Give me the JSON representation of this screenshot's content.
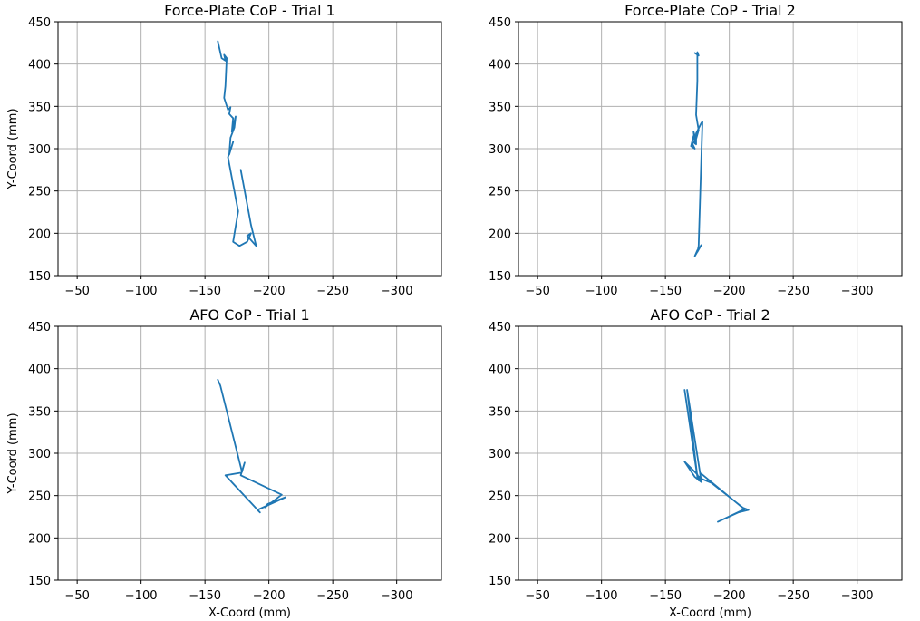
{
  "figure": {
    "line_color": "#1f77b4",
    "grid_color": "#b0b0b0"
  },
  "chart_data": [
    {
      "type": "line",
      "title": "Force-Plate CoP - Trial 1",
      "xlabel": "",
      "ylabel": "Y-Coord (mm)",
      "xlim": [
        -35,
        -335
      ],
      "ylim": [
        150,
        450
      ],
      "xticks": [
        -50,
        -100,
        -150,
        -200,
        -250,
        -300
      ],
      "yticks": [
        150,
        200,
        250,
        300,
        350,
        400,
        450
      ],
      "xtick_labels": [
        "−50",
        "−100",
        "−150",
        "−200",
        "−250",
        "−300"
      ],
      "ytick_labels": [
        "150",
        "200",
        "250",
        "300",
        "350",
        "400",
        "450"
      ],
      "grid": true,
      "series": [
        {
          "x": [
            -160,
            -163,
            -166,
            -165,
            -167,
            -166,
            -165,
            -168,
            -170,
            -169,
            -172,
            -171,
            -174,
            -173,
            -170,
            -169,
            -172,
            -170,
            -168,
            -176,
            -172,
            -177,
            -183,
            -186,
            -183,
            -190,
            -186,
            -178
          ],
          "y": [
            427,
            407,
            404,
            411,
            407,
            374,
            360,
            346,
            349,
            341,
            336,
            320,
            338,
            325,
            313,
            293,
            308,
            298,
            290,
            226,
            190,
            185,
            190,
            200,
            197,
            185,
            210,
            275
          ]
        }
      ]
    },
    {
      "type": "line",
      "title": "Force-Plate CoP - Trial 2",
      "xlabel": "",
      "ylabel": "",
      "xlim": [
        -35,
        -335
      ],
      "ylim": [
        150,
        450
      ],
      "xticks": [
        -50,
        -100,
        -150,
        -200,
        -250,
        -300
      ],
      "yticks": [
        150,
        200,
        250,
        300,
        350,
        400,
        450
      ],
      "xtick_labels": [
        "−50",
        "−100",
        "−150",
        "−200",
        "−250",
        "−300"
      ],
      "ytick_labels": [
        "150",
        "200",
        "250",
        "300",
        "350",
        "400",
        "450"
      ],
      "grid": true,
      "series": [
        {
          "x": [
            -173,
            -176,
            -175,
            -175,
            -174,
            -176,
            -173,
            -172,
            -174,
            -171,
            -173,
            -170,
            -172,
            -174,
            -174,
            -178,
            -179,
            -176,
            -175,
            -178,
            -173,
            -175
          ],
          "y": [
            413,
            410,
            414,
            380,
            340,
            322,
            306,
            320,
            310,
            306,
            300,
            303,
            315,
            305,
            318,
            330,
            332,
            185,
            178,
            186,
            173,
            180
          ]
        }
      ]
    },
    {
      "type": "line",
      "title": "AFO CoP - Trial 1",
      "xlabel": "X-Coord (mm)",
      "ylabel": "Y-Coord (mm)",
      "xlim": [
        -35,
        -335
      ],
      "ylim": [
        150,
        450
      ],
      "xticks": [
        -50,
        -100,
        -150,
        -200,
        -250,
        -300
      ],
      "yticks": [
        150,
        200,
        250,
        300,
        350,
        400,
        450
      ],
      "xtick_labels": [
        "−50",
        "−100",
        "−150",
        "−200",
        "−250",
        "−300"
      ],
      "ytick_labels": [
        "150",
        "200",
        "250",
        "300",
        "350",
        "400",
        "450"
      ],
      "grid": true,
      "series": [
        {
          "x": [
            -160,
            -162,
            -179,
            -181,
            -178,
            -210,
            -197,
            -199,
            -213,
            -191,
            -193,
            -166,
            -178
          ],
          "y": [
            387,
            380,
            278,
            289,
            274,
            251,
            236,
            240,
            248,
            233,
            230,
            274,
            277
          ]
        }
      ]
    },
    {
      "type": "line",
      "title": "AFO CoP - Trial 2",
      "xlabel": "X-Coord (mm)",
      "ylabel": "",
      "xlim": [
        -35,
        -335
      ],
      "ylim": [
        150,
        450
      ],
      "xticks": [
        -50,
        -100,
        -150,
        -200,
        -250,
        -300
      ],
      "yticks": [
        150,
        200,
        250,
        300,
        350,
        400,
        450
      ],
      "xtick_labels": [
        "−50",
        "−100",
        "−150",
        "−200",
        "−250",
        "−300"
      ],
      "ytick_labels": [
        "150",
        "200",
        "250",
        "300",
        "350",
        "400",
        "450"
      ],
      "grid": true,
      "series": [
        {
          "x": [
            -165,
            -175,
            -167,
            -178,
            -175,
            -178,
            -186,
            -212,
            -191,
            -207,
            -215,
            -210,
            -178,
            -176,
            -175,
            -165,
            -173,
            -178
          ],
          "y": [
            375,
            272,
            375,
            268,
            274,
            270,
            265,
            234,
            219,
            230,
            233,
            236,
            276,
            268,
            275,
            290,
            272,
            266
          ]
        }
      ]
    }
  ]
}
